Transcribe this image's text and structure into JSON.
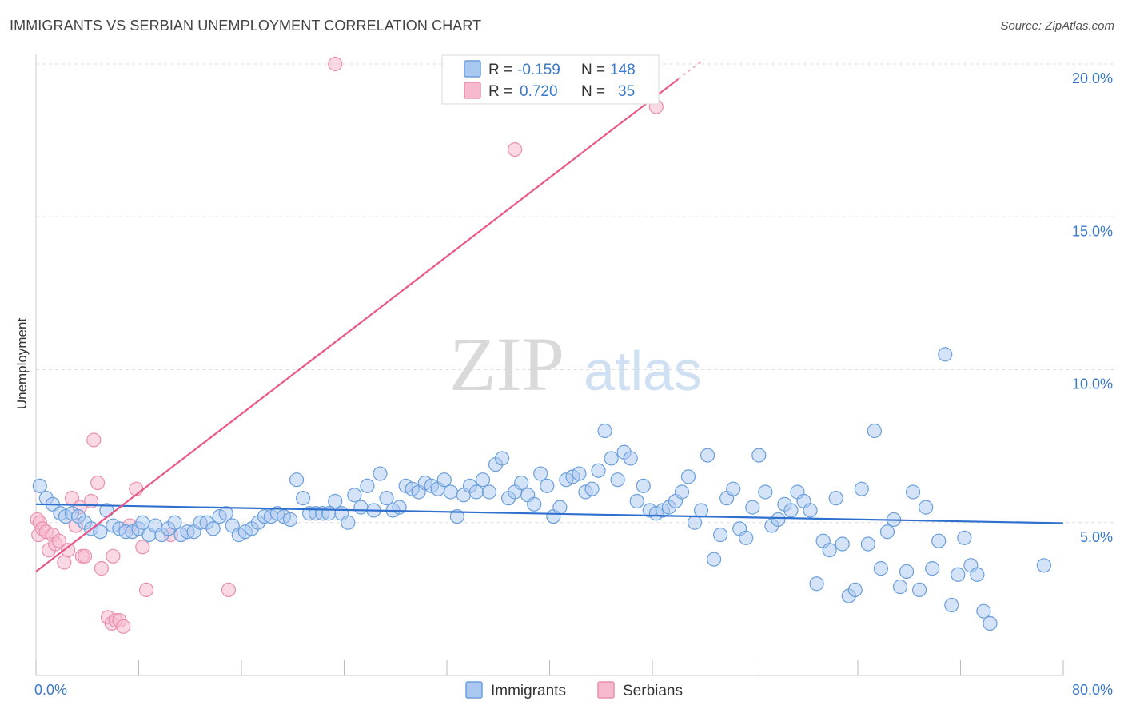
{
  "title": "IMMIGRANTS VS SERBIAN UNEMPLOYMENT CORRELATION CHART",
  "source": "Source: ZipAtlas.com",
  "watermark": {
    "zip": "ZIP",
    "atlas": "atlas"
  },
  "legend_top": [
    {
      "r_label": "R =",
      "r_value": "-0.159",
      "n_label": "N =",
      "n_value": "148",
      "color": "#a9c8f0"
    },
    {
      "r_label": "R =",
      "r_value": "0.720",
      "n_label": "N =",
      "n_value": "35",
      "color": "#f6b9cd"
    }
  ],
  "legend_bottom": [
    "Immigrants",
    "Serbians"
  ],
  "colors": {
    "immigrants_fill": "#a9c8f0",
    "immigrants_stroke": "#6a9fdd",
    "immigrants_line": "#2f6fce",
    "serbians_fill": "#f6b9cd",
    "serbians_stroke": "#ea8fb0",
    "serbians_line": "#e8588a",
    "tick_text": "#3a78c9",
    "grid": "#dddddd"
  },
  "chart_data": {
    "type": "scatter",
    "title": "IMMIGRANTS VS SERBIAN UNEMPLOYMENT CORRELATION CHART",
    "xlabel": "",
    "ylabel": "Unemployment",
    "xlim": [
      0,
      80
    ],
    "ylim": [
      0,
      20
    ],
    "x_tick_labels": [
      "0.0%",
      "80.0%"
    ],
    "y_ticks": [
      5,
      10,
      15,
      20
    ],
    "y_tick_labels": [
      "5.0%",
      "10.0%",
      "15.0%",
      "20.0%"
    ],
    "grid": true,
    "legend_position": "top-center",
    "series": [
      {
        "name": "Immigrants",
        "r": -0.159,
        "n": 148,
        "trendline": [
          [
            0,
            5.6
          ],
          [
            80,
            4.98
          ]
        ],
        "points": [
          [
            0.3,
            6.2
          ],
          [
            0.8,
            5.8
          ],
          [
            1.3,
            5.6
          ],
          [
            1.9,
            5.3
          ],
          [
            2.3,
            5.2
          ],
          [
            2.8,
            5.3
          ],
          [
            3.3,
            5.2
          ],
          [
            3.8,
            5.0
          ],
          [
            4.3,
            4.8
          ],
          [
            5.0,
            4.7
          ],
          [
            5.5,
            5.4
          ],
          [
            6.0,
            4.9
          ],
          [
            6.5,
            4.8
          ],
          [
            7.0,
            4.7
          ],
          [
            7.5,
            4.7
          ],
          [
            8.0,
            4.8
          ],
          [
            8.3,
            5.0
          ],
          [
            8.8,
            4.6
          ],
          [
            9.3,
            4.9
          ],
          [
            9.8,
            4.6
          ],
          [
            10.3,
            4.8
          ],
          [
            10.8,
            5.0
          ],
          [
            11.3,
            4.6
          ],
          [
            11.8,
            4.7
          ],
          [
            12.3,
            4.7
          ],
          [
            12.8,
            5.0
          ],
          [
            13.3,
            5.0
          ],
          [
            13.8,
            4.8
          ],
          [
            14.3,
            5.2
          ],
          [
            14.8,
            5.3
          ],
          [
            15.3,
            4.9
          ],
          [
            15.8,
            4.6
          ],
          [
            16.3,
            4.7
          ],
          [
            16.8,
            4.8
          ],
          [
            17.3,
            5.0
          ],
          [
            17.8,
            5.2
          ],
          [
            18.3,
            5.2
          ],
          [
            18.8,
            5.3
          ],
          [
            19.3,
            5.2
          ],
          [
            19.8,
            5.1
          ],
          [
            20.3,
            6.4
          ],
          [
            20.8,
            5.8
          ],
          [
            21.3,
            5.3
          ],
          [
            21.8,
            5.3
          ],
          [
            22.3,
            5.3
          ],
          [
            22.8,
            5.3
          ],
          [
            23.3,
            5.7
          ],
          [
            23.8,
            5.3
          ],
          [
            24.3,
            5.0
          ],
          [
            24.8,
            5.9
          ],
          [
            25.3,
            5.5
          ],
          [
            25.8,
            6.2
          ],
          [
            26.3,
            5.4
          ],
          [
            26.8,
            6.6
          ],
          [
            27.3,
            5.8
          ],
          [
            27.8,
            5.4
          ],
          [
            28.3,
            5.5
          ],
          [
            28.8,
            6.2
          ],
          [
            29.3,
            6.1
          ],
          [
            29.8,
            6.0
          ],
          [
            30.3,
            6.3
          ],
          [
            30.8,
            6.2
          ],
          [
            31.3,
            6.1
          ],
          [
            31.8,
            6.4
          ],
          [
            32.3,
            6.0
          ],
          [
            32.8,
            5.2
          ],
          [
            33.3,
            5.9
          ],
          [
            33.8,
            6.2
          ],
          [
            34.3,
            6.0
          ],
          [
            34.8,
            6.4
          ],
          [
            35.3,
            6.0
          ],
          [
            35.8,
            6.9
          ],
          [
            36.3,
            7.1
          ],
          [
            36.8,
            5.8
          ],
          [
            37.3,
            6.0
          ],
          [
            37.8,
            6.3
          ],
          [
            38.3,
            5.9
          ],
          [
            38.8,
            5.6
          ],
          [
            39.3,
            6.6
          ],
          [
            39.8,
            6.2
          ],
          [
            40.3,
            5.2
          ],
          [
            40.8,
            5.5
          ],
          [
            41.3,
            6.4
          ],
          [
            41.8,
            6.5
          ],
          [
            42.3,
            6.6
          ],
          [
            42.8,
            6.0
          ],
          [
            43.3,
            6.1
          ],
          [
            43.8,
            6.7
          ],
          [
            44.3,
            8.0
          ],
          [
            44.8,
            7.1
          ],
          [
            45.3,
            6.4
          ],
          [
            45.8,
            7.3
          ],
          [
            46.3,
            7.1
          ],
          [
            46.8,
            5.7
          ],
          [
            47.3,
            6.2
          ],
          [
            47.8,
            5.4
          ],
          [
            48.3,
            5.3
          ],
          [
            48.8,
            5.4
          ],
          [
            49.3,
            5.5
          ],
          [
            49.8,
            5.7
          ],
          [
            50.3,
            6.0
          ],
          [
            50.8,
            6.5
          ],
          [
            51.3,
            5.0
          ],
          [
            51.8,
            5.4
          ],
          [
            52.3,
            7.2
          ],
          [
            52.8,
            3.8
          ],
          [
            53.3,
            4.6
          ],
          [
            53.8,
            5.8
          ],
          [
            54.3,
            6.1
          ],
          [
            54.8,
            4.8
          ],
          [
            55.3,
            4.5
          ],
          [
            55.8,
            5.5
          ],
          [
            56.3,
            7.2
          ],
          [
            56.8,
            6.0
          ],
          [
            57.3,
            4.9
          ],
          [
            57.8,
            5.1
          ],
          [
            58.3,
            5.6
          ],
          [
            58.8,
            5.4
          ],
          [
            59.3,
            6.0
          ],
          [
            59.8,
            5.7
          ],
          [
            60.3,
            5.4
          ],
          [
            60.8,
            3.0
          ],
          [
            61.3,
            4.4
          ],
          [
            61.8,
            4.1
          ],
          [
            62.3,
            5.8
          ],
          [
            62.8,
            4.3
          ],
          [
            63.3,
            2.6
          ],
          [
            63.8,
            2.8
          ],
          [
            64.3,
            6.1
          ],
          [
            64.8,
            4.3
          ],
          [
            65.3,
            8.0
          ],
          [
            65.8,
            3.5
          ],
          [
            66.3,
            4.7
          ],
          [
            66.8,
            5.1
          ],
          [
            67.3,
            2.9
          ],
          [
            67.8,
            3.4
          ],
          [
            68.3,
            6.0
          ],
          [
            68.8,
            2.8
          ],
          [
            69.3,
            5.5
          ],
          [
            69.8,
            3.5
          ],
          [
            70.3,
            4.4
          ],
          [
            70.8,
            10.5
          ],
          [
            71.3,
            2.3
          ],
          [
            71.8,
            3.3
          ],
          [
            72.3,
            4.5
          ],
          [
            72.8,
            3.6
          ],
          [
            73.3,
            3.3
          ],
          [
            73.8,
            2.1
          ],
          [
            74.3,
            1.7
          ],
          [
            78.5,
            3.6
          ]
        ]
      },
      {
        "name": "Serbians",
        "r": 0.72,
        "n": 35,
        "trendline": [
          [
            0,
            3.4
          ],
          [
            50,
            19.5
          ]
        ],
        "points": [
          [
            0.1,
            5.1
          ],
          [
            0.2,
            4.6
          ],
          [
            0.3,
            5.0
          ],
          [
            0.5,
            4.8
          ],
          [
            0.8,
            4.7
          ],
          [
            1.0,
            4.1
          ],
          [
            1.3,
            4.6
          ],
          [
            1.5,
            4.3
          ],
          [
            1.8,
            4.4
          ],
          [
            2.2,
            3.7
          ],
          [
            2.5,
            4.1
          ],
          [
            2.8,
            5.8
          ],
          [
            3.1,
            4.9
          ],
          [
            3.4,
            5.5
          ],
          [
            3.6,
            3.9
          ],
          [
            3.8,
            3.9
          ],
          [
            4.3,
            5.7
          ],
          [
            4.5,
            7.7
          ],
          [
            4.8,
            6.3
          ],
          [
            5.1,
            3.5
          ],
          [
            5.6,
            1.9
          ],
          [
            5.9,
            1.7
          ],
          [
            6.0,
            3.9
          ],
          [
            6.2,
            1.8
          ],
          [
            6.5,
            1.8
          ],
          [
            6.8,
            1.6
          ],
          [
            7.3,
            4.9
          ],
          [
            7.8,
            6.1
          ],
          [
            8.3,
            4.2
          ],
          [
            8.6,
            2.8
          ],
          [
            10.5,
            4.6
          ],
          [
            15.0,
            2.8
          ],
          [
            23.3,
            20.0
          ],
          [
            37.3,
            17.2
          ],
          [
            48.3,
            18.6
          ]
        ]
      }
    ]
  }
}
